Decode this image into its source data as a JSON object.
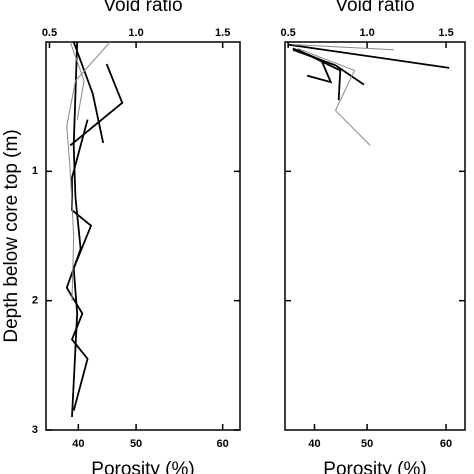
{
  "chart_data": [
    {
      "type": "line",
      "title": "Void ratio",
      "xlabel": "Porosity (%)",
      "ylabel": "Depth below core top (m)",
      "xlim": [
        0.48,
        1.6
      ],
      "xticks": [
        0.5,
        {
          "value": 1,
          "label": "1.0"
        },
        1.5
      ],
      "x2ticks": [
        40,
        50,
        60
      ],
      "x2_scale": "porosity",
      "ylim": [
        0,
        3
      ],
      "yticks": [
        1,
        2,
        3
      ],
      "y_inverted": true,
      "series": [
        {
          "color": "#000000",
          "void_ratio": [
            0.83,
            0.92,
            0.62
          ],
          "depth": [
            0.17,
            0.47,
            0.8
          ]
        },
        {
          "color": "#000000",
          "void_ratio": [
            0.64,
            0.75,
            0.81
          ],
          "depth": [
            0,
            0.4,
            0.78
          ]
        },
        {
          "color": "#000000",
          "void_ratio": [
            0.72,
            0.66,
            0.63,
            0.63,
            0.74,
            0.64,
            0.66,
            0.63
          ],
          "depth": [
            0.6,
            0.9,
            1.05,
            1.3,
            1.42,
            1.75,
            2.1,
            2.9
          ]
        },
        {
          "color": "#000000",
          "void_ratio": [
            0.66,
            0.64,
            0.65,
            0.68,
            0.6,
            0.69,
            0.63,
            0.72,
            0.64
          ],
          "depth": [
            0,
            0.8,
            1.2,
            1.6,
            1.9,
            2.1,
            2.3,
            2.45,
            2.85
          ]
        },
        {
          "color": "#888888",
          "void_ratio": [
            0.85,
            0.65,
            0.6,
            0.62,
            0.64,
            0.63
          ],
          "depth": [
            0,
            0.3,
            0.65,
            1.0,
            1.5,
            2.0
          ]
        },
        {
          "color": "#888888",
          "void_ratio": [
            0.62,
            0.7,
            0.66
          ],
          "depth": [
            0,
            0.3,
            0.6
          ]
        }
      ]
    },
    {
      "type": "line",
      "title": "Void ratio",
      "xlabel": "Porosity (%)",
      "xlim": [
        0.48,
        1.62
      ],
      "xticks": [
        0.5,
        {
          "value": 1,
          "label": "1.0"
        },
        1.5
      ],
      "x2ticks": [
        40,
        50,
        60
      ],
      "x2_scale": "porosity",
      "ylim": [
        0,
        3
      ],
      "yticks": [
        1,
        2
      ],
      "y_inverted": true,
      "series": [
        {
          "color": "#000000",
          "void_ratio": [
            0.5,
            1.52
          ],
          "depth": [
            0.02,
            0.2
          ]
        },
        {
          "color": "#000000",
          "void_ratio": [
            0.53,
            0.71,
            0.77,
            0.62
          ],
          "depth": [
            0.05,
            0.14,
            0.31,
            0.26
          ]
        },
        {
          "color": "#000000",
          "void_ratio": [
            0.53,
            0.8,
            0.98
          ],
          "depth": [
            0.06,
            0.18,
            0.33
          ]
        },
        {
          "color": "#000000",
          "void_ratio": [
            0.56,
            0.83,
            0.82
          ],
          "depth": [
            0.06,
            0.22,
            0.45
          ]
        },
        {
          "color": "#888888",
          "void_ratio": [
            0.56,
            0.92,
            0.8,
            1.02
          ],
          "depth": [
            0.05,
            0.22,
            0.53,
            0.8
          ]
        },
        {
          "color": "#888888",
          "void_ratio": [
            0.53,
            1.17
          ],
          "depth": [
            0.02,
            0.06
          ]
        }
      ]
    }
  ]
}
